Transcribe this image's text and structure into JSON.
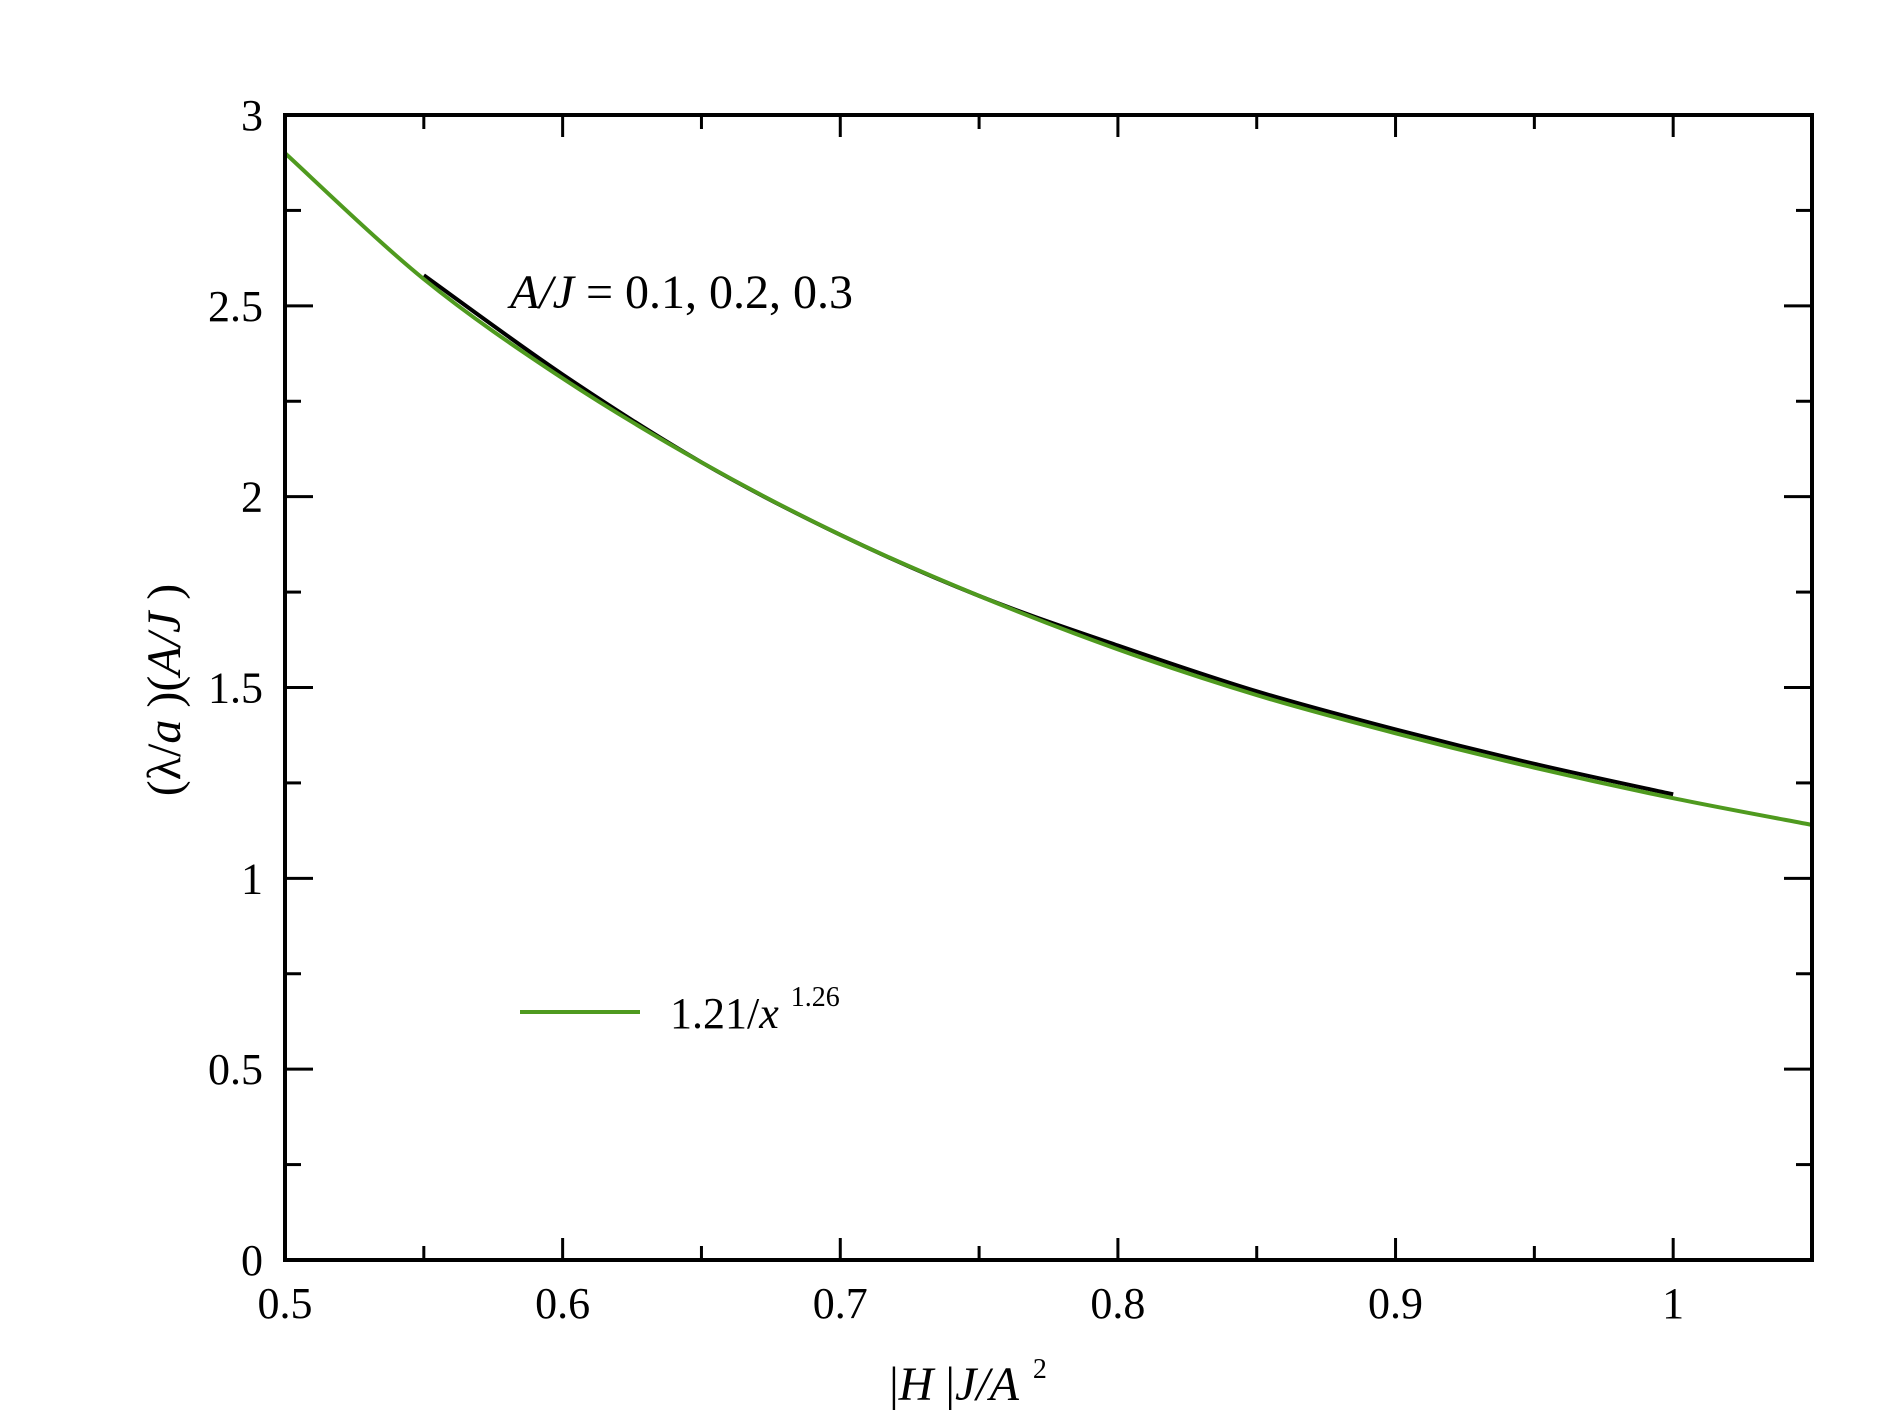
{
  "chart_data": {
    "type": "line",
    "title": "",
    "xlabel": {
      "p1": "|",
      "p2": "H",
      "p3": " |",
      "p4": "J/A",
      "p5": "2"
    },
    "ylabel": {
      "p1": "(λ/",
      "p2": "a",
      "p3": " )(",
      "p4": "A/J",
      "p5": " )"
    },
    "xlim": [
      0.5,
      1.05
    ],
    "ylim": [
      0,
      3
    ],
    "x_ticks": [
      "0.5",
      "0.6",
      "0.7",
      "0.8",
      "0.9",
      "1"
    ],
    "y_ticks": [
      "0",
      "0.5",
      "1",
      "1.5",
      "2",
      "2.5",
      "3"
    ],
    "annotation": {
      "p1": "A/J",
      "p2": " = 0.1, 0.2, 0.3"
    },
    "legend": {
      "p1": "1.21/",
      "p2": "x",
      "p3": "1.26"
    },
    "legend_placement": "lower-left",
    "grid": false,
    "series": [
      {
        "name": "",
        "color": "#000000",
        "x": [
          0.55,
          0.6,
          0.65,
          0.7,
          0.75,
          0.8,
          0.85,
          0.9,
          0.95,
          1.0
        ],
        "y": [
          2.58,
          2.32,
          2.09,
          1.9,
          1.74,
          1.61,
          1.49,
          1.39,
          1.3,
          1.22
        ]
      },
      {
        "name": "1.21/x 1.26",
        "color": "#4f9a1f",
        "x": [
          0.5,
          0.55,
          0.6,
          0.65,
          0.7,
          0.75,
          0.8,
          0.85,
          0.9,
          0.95,
          1.0,
          1.05
        ],
        "y": [
          2.9,
          2.57,
          2.31,
          2.09,
          1.9,
          1.74,
          1.6,
          1.48,
          1.38,
          1.29,
          1.21,
          1.14
        ]
      }
    ]
  }
}
